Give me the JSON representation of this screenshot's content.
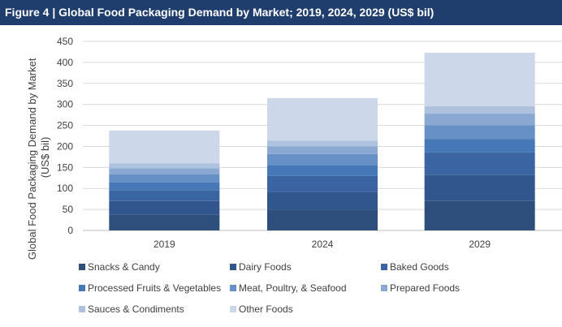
{
  "header": {
    "title": "Figure 4 | Global Food Packaging Demand by Market; 2019, 2024, 2029 (US$ bil)"
  },
  "chart_data": {
    "type": "bar",
    "stacked": true,
    "title": "Figure 4 | Global Food Packaging Demand by Market; 2019, 2024, 2029 (US$ bil)",
    "ylabel": "Global Food Packaging Demand by Market (US$ bil)",
    "xlabel": "",
    "ylim": [
      0,
      450
    ],
    "yticks": [
      0,
      50,
      100,
      150,
      200,
      250,
      300,
      350,
      400,
      450
    ],
    "grid": true,
    "legend_position": "bottom",
    "categories": [
      "2019",
      "2024",
      "2029"
    ],
    "series": [
      {
        "name": "Snacks & Candy",
        "color": "#2e4f7c",
        "values": [
          38,
          50,
          70
        ]
      },
      {
        "name": "Dairy Foods",
        "color": "#31568e",
        "values": [
          32,
          42,
          62
        ]
      },
      {
        "name": "Baked Goods",
        "color": "#3a65a2",
        "values": [
          26,
          38,
          54
        ]
      },
      {
        "name": "Processed Fruits & Vegetables",
        "color": "#4677b6",
        "values": [
          18,
          26,
          32
        ]
      },
      {
        "name": "Meat, Poultry, & Seafood",
        "color": "#6690c6",
        "values": [
          20,
          26,
          32
        ]
      },
      {
        "name": "Prepared Foods",
        "color": "#8aa8d2",
        "values": [
          14,
          18,
          28
        ]
      },
      {
        "name": "Sauces & Condiments",
        "color": "#aec2e0",
        "values": [
          12,
          14,
          18
        ]
      },
      {
        "name": "Other Foods",
        "color": "#ccd7ea",
        "values": [
          78,
          101,
          127
        ]
      }
    ]
  }
}
